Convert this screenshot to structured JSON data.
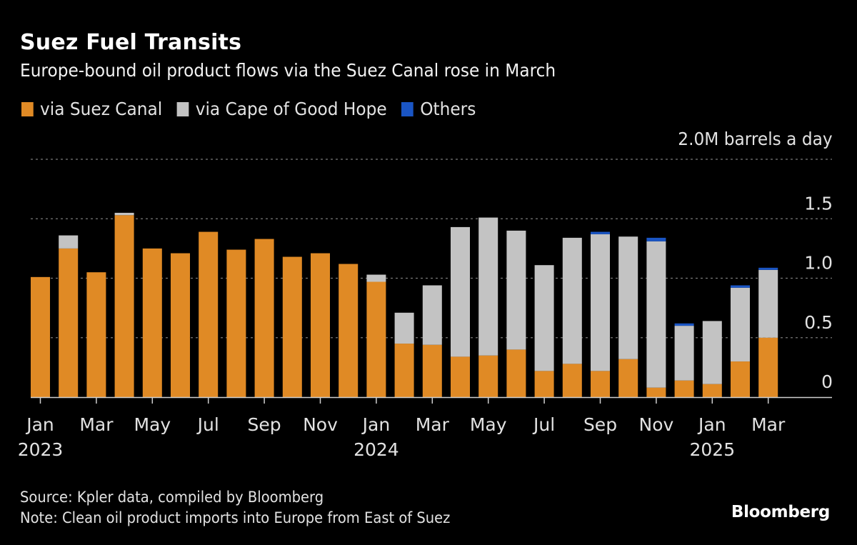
{
  "header": {
    "title": "Suez Fuel Transits",
    "subtitle": "Europe-bound oil product flows via the Suez Canal rose in March"
  },
  "footer": {
    "source": "Source: Kpler data, compiled by Bloomberg",
    "note": "Note: Clean oil product imports into Europe from East of Suez",
    "brand": "Bloomberg"
  },
  "colors": {
    "suez": "#e08a25",
    "cape": "#c3c3c3",
    "others": "#1a55c4",
    "background": "#000000",
    "gridline": "#7a7a7a",
    "axis": "#cfcfcf"
  },
  "chart_data": {
    "type": "bar",
    "stacked": true,
    "title": "Suez Fuel Transits",
    "subtitle": "Europe-bound oil product flows via the Suez Canal rose in March",
    "ylabel": "M barrels a day",
    "unit_label": "2.0M barrels a day",
    "ylim": [
      0,
      2.0
    ],
    "yticks": [
      0,
      0.5,
      1.0,
      1.5,
      2.0
    ],
    "ytick_labels": [
      "0",
      "0.5",
      "1.0",
      "1.5",
      "2.0M barrels a day"
    ],
    "grid": true,
    "legend_position": "top-left",
    "categories": [
      "Jan 2023",
      "Feb 2023",
      "Mar 2023",
      "Apr 2023",
      "May 2023",
      "Jun 2023",
      "Jul 2023",
      "Aug 2023",
      "Sep 2023",
      "Oct 2023",
      "Nov 2023",
      "Dec 2023",
      "Jan 2024",
      "Feb 2024",
      "Mar 2024",
      "Apr 2024",
      "May 2024",
      "Jun 2024",
      "Jul 2024",
      "Aug 2024",
      "Sep 2024",
      "Oct 2024",
      "Nov 2024",
      "Dec 2024",
      "Jan 2025",
      "Feb 2025",
      "Mar 2025"
    ],
    "xtick_labels": [
      {
        "index": 0,
        "label": "Jan",
        "year": "2023"
      },
      {
        "index": 2,
        "label": "Mar",
        "year": ""
      },
      {
        "index": 4,
        "label": "May",
        "year": ""
      },
      {
        "index": 6,
        "label": "Jul",
        "year": ""
      },
      {
        "index": 8,
        "label": "Sep",
        "year": ""
      },
      {
        "index": 10,
        "label": "Nov",
        "year": ""
      },
      {
        "index": 12,
        "label": "Jan",
        "year": "2024"
      },
      {
        "index": 14,
        "label": "Mar",
        "year": ""
      },
      {
        "index": 16,
        "label": "May",
        "year": ""
      },
      {
        "index": 18,
        "label": "Jul",
        "year": ""
      },
      {
        "index": 20,
        "label": "Sep",
        "year": ""
      },
      {
        "index": 22,
        "label": "Nov",
        "year": ""
      },
      {
        "index": 24,
        "label": "Jan",
        "year": "2025"
      },
      {
        "index": 26,
        "label": "Mar",
        "year": ""
      }
    ],
    "series": [
      {
        "name": "via Suez Canal",
        "color": "#e08a25",
        "values": [
          1.01,
          1.25,
          1.05,
          1.53,
          1.25,
          1.21,
          1.39,
          1.24,
          1.33,
          1.18,
          1.21,
          1.12,
          0.97,
          0.45,
          0.44,
          0.34,
          0.35,
          0.4,
          0.22,
          0.28,
          0.22,
          0.32,
          0.08,
          0.14,
          0.11,
          0.3,
          0.5
        ]
      },
      {
        "name": "via Cape of Good Hope",
        "color": "#c3c3c3",
        "values": [
          0.0,
          0.11,
          0.0,
          0.02,
          0.0,
          0.0,
          0.0,
          0.0,
          0.0,
          0.0,
          0.0,
          0.0,
          0.06,
          0.26,
          0.5,
          1.09,
          1.16,
          1.0,
          0.89,
          1.06,
          1.15,
          1.03,
          1.23,
          0.46,
          0.53,
          0.62,
          0.57
        ]
      },
      {
        "name": "Others",
        "color": "#1a55c4",
        "values": [
          0,
          0,
          0,
          0,
          0,
          0,
          0,
          0,
          0,
          0,
          0,
          0,
          0,
          0,
          0,
          0,
          0,
          0,
          0,
          0,
          0.02,
          0,
          0.03,
          0.02,
          0,
          0.02,
          0.005
        ]
      }
    ]
  }
}
